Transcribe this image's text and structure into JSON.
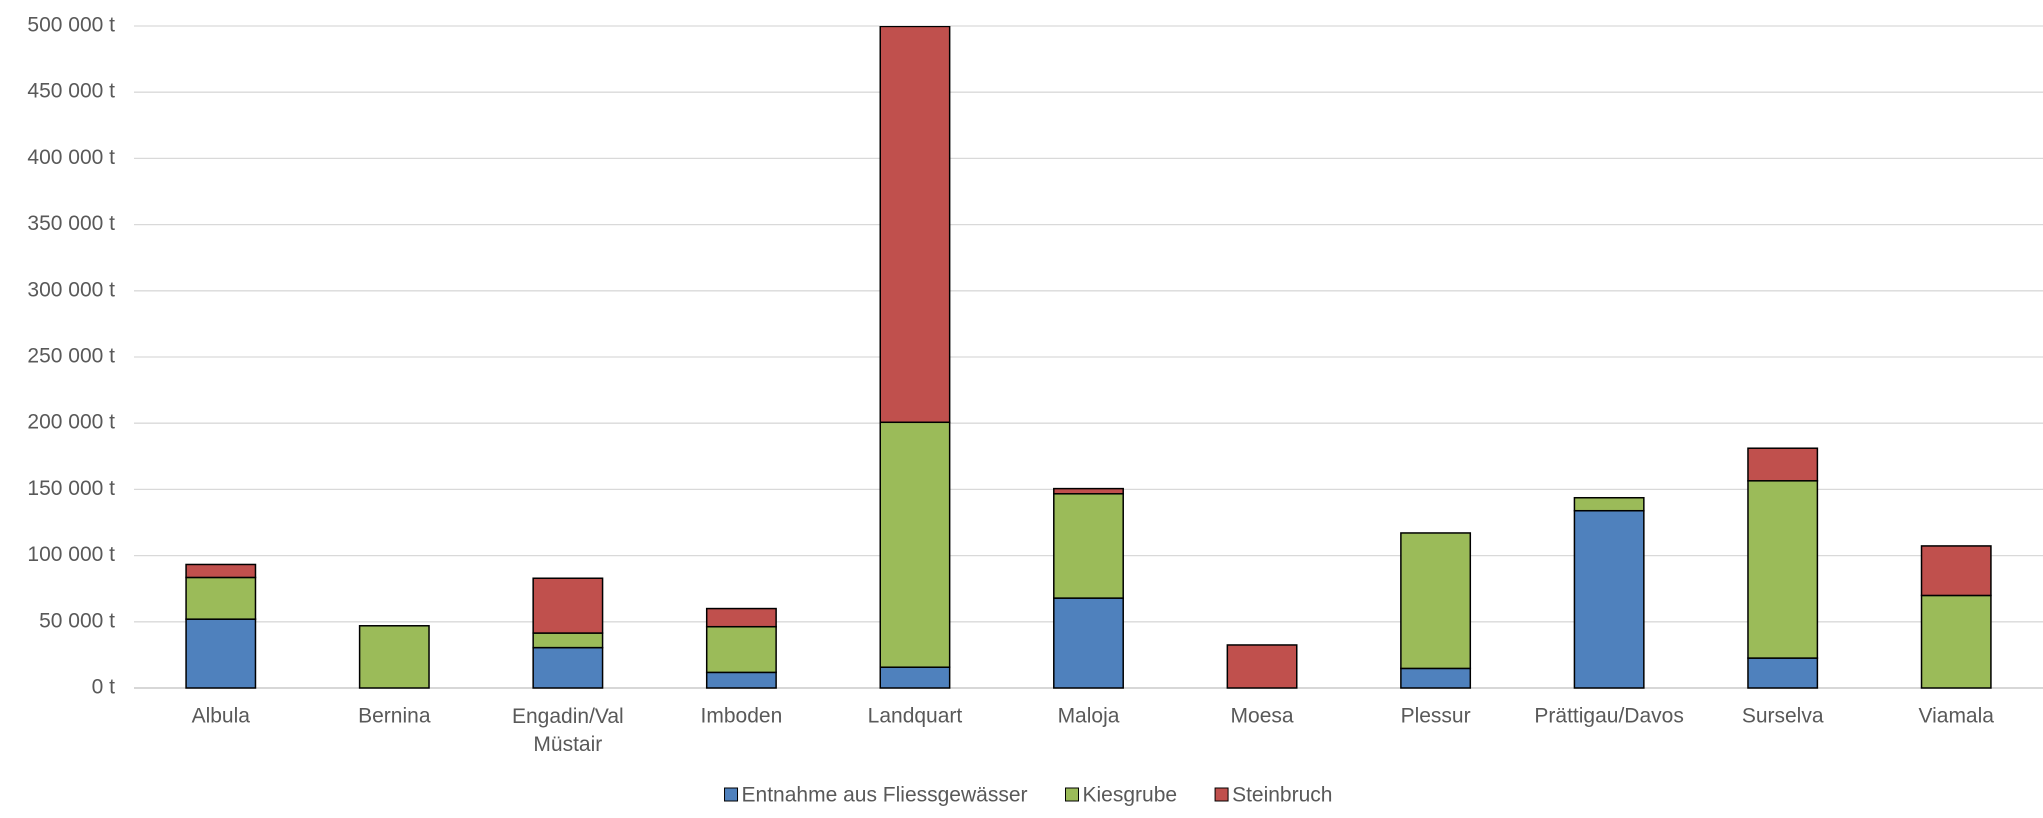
{
  "chart_data": {
    "type": "stacked_bar",
    "categories": [
      "Albula",
      "Bernina",
      "Engadin/Val Müstair",
      "Imboden",
      "Landquart",
      "Maloja",
      "Moesa",
      "Plessur",
      "Prättigau/Davos",
      "Surselva",
      "Viamala"
    ],
    "series": [
      {
        "name": "Entnahme aus Fliessgewässer",
        "color": "#4f81bd",
        "values": [
          52000,
          0,
          30500,
          11800,
          15700,
          67900,
          0,
          14800,
          133900,
          22600,
          0
        ]
      },
      {
        "name": "Kiesgrube",
        "color": "#9bbb59",
        "values": [
          31500,
          47000,
          11000,
          34500,
          185000,
          78800,
          0,
          102300,
          9800,
          133900,
          69900
        ]
      },
      {
        "name": "Steinbruch",
        "color": "#c0504d",
        "values": [
          9800,
          0,
          41400,
          13700,
          299000,
          3900,
          32500,
          0,
          0,
          24600,
          37400
        ]
      }
    ],
    "ylim": [
      0,
      500000
    ],
    "yticks": [
      {
        "value": 0,
        "label": "0 t"
      },
      {
        "value": 50000,
        "label": "50 000 t"
      },
      {
        "value": 100000,
        "label": "100 000 t"
      },
      {
        "value": 150000,
        "label": "150 000 t"
      },
      {
        "value": 200000,
        "label": "200 000 t"
      },
      {
        "value": 250000,
        "label": "250 000 t"
      },
      {
        "value": 300000,
        "label": "300 000 t"
      },
      {
        "value": 350000,
        "label": "350 000 t"
      },
      {
        "value": 400000,
        "label": "400 000 t"
      },
      {
        "value": 450000,
        "label": "450 000 t"
      },
      {
        "value": 500000,
        "label": "500 000 t"
      }
    ],
    "grid": true,
    "legend": "bottom"
  }
}
